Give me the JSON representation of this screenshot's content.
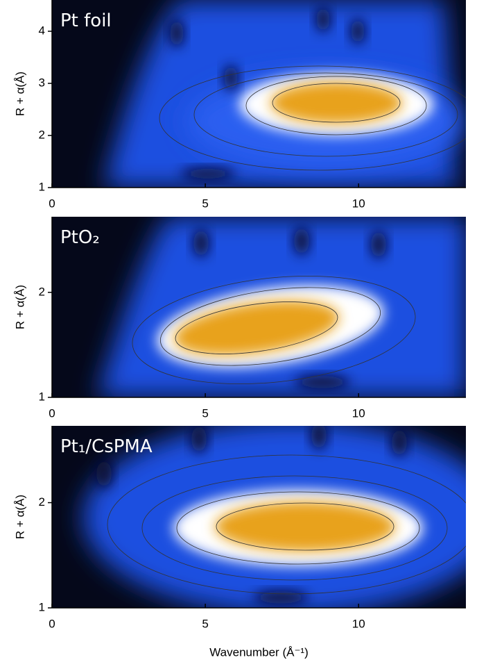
{
  "chart_data": [
    {
      "type": "contour",
      "title": "Pt foil",
      "ylabel": "R + α(Å)",
      "xlim": [
        0,
        13.5
      ],
      "ylim": [
        1,
        4.6
      ],
      "xticks": [
        0,
        5,
        10
      ],
      "yticks": [
        1,
        2,
        3,
        4
      ]
    },
    {
      "type": "contour",
      "title": "PtO₂",
      "ylabel": "R + α(Å)",
      "xlim": [
        0,
        13.5
      ],
      "ylim": [
        1,
        2.72
      ],
      "xticks": [
        0,
        5,
        10
      ],
      "yticks": [
        1,
        2
      ]
    },
    {
      "type": "contour",
      "title": "Pt₁/CsPMA",
      "ylabel": "R + α(Å)",
      "xlabel": "Wavenumber (Å⁻¹)",
      "xlim": [
        0,
        13.5
      ],
      "ylim": [
        1,
        2.73
      ],
      "xticks": [
        0,
        5,
        10
      ],
      "yticks": [
        1,
        2
      ]
    }
  ]
}
